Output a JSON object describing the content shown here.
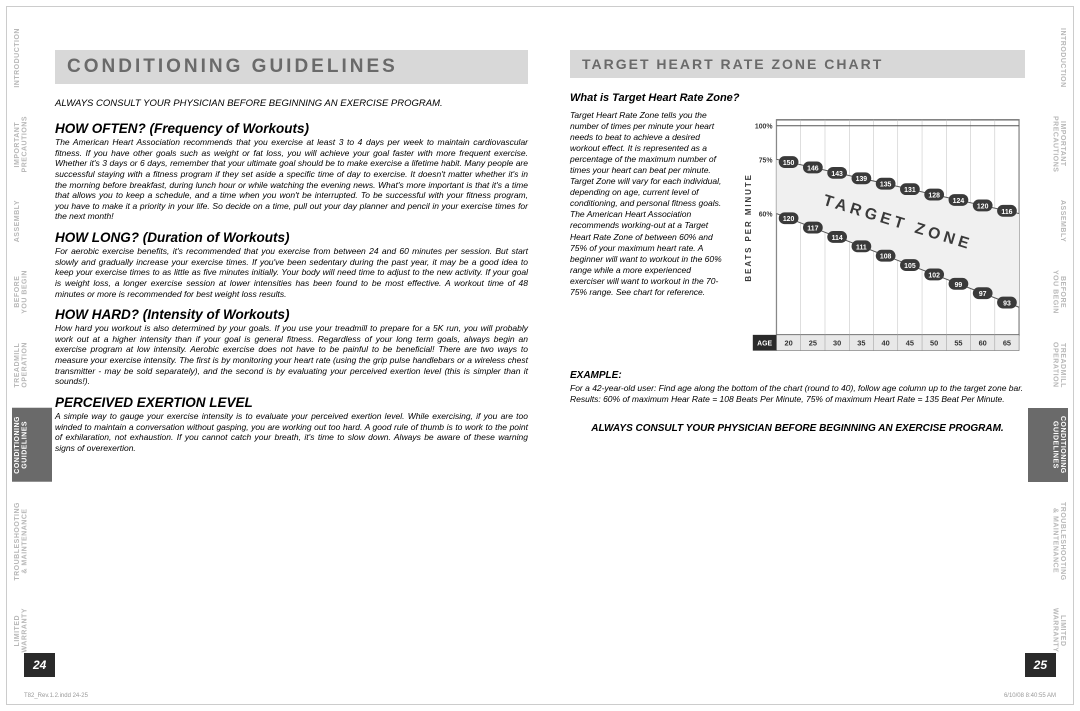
{
  "nav": {
    "left": [
      "INTRODUCTION",
      "IMPORTANT PRECAUTIONS",
      "ASSEMBLY",
      "BEFORE YOU BEGIN",
      "TREADMILL OPERATION",
      "CONDITIONING GUIDELINES",
      "TROUBLESHOOTING & MAINTENANCE",
      "LIMITED WARRANTY"
    ],
    "right": [
      "INTRODUCTION",
      "IMPORTANT PRECAUTIONS",
      "ASSEMBLY",
      "BEFORE YOU BEGIN",
      "TREADMILL OPERATION",
      "CONDITIONING GUIDELINES",
      "TROUBLESHOOTING & MAINTENANCE",
      "LIMITED WARRANTY"
    ],
    "active_index": 5
  },
  "left_page": {
    "title": "CONDITIONING GUIDELINES",
    "disclaimer": "ALWAYS CONSULT YOUR PHYSICIAN BEFORE BEGINNING AN EXERCISE PROGRAM.",
    "sections": [
      {
        "heading": "HOW OFTEN? (Frequency of Workouts)",
        "body": "The American Heart Association recommends that you exercise at least 3 to 4 days per week to maintain cardiovascular fitness. If you have other goals such as weight or fat loss, you will achieve your goal faster with more frequent exercise. Whether it's 3 days or 6 days, remember that your ultimate goal should be to make exercise a lifetime habit. Many people are successful staying with a fitness program if they set aside a specific time of day to exercise. It doesn't matter whether it's in the morning before breakfast, during lunch hour or while watching the evening news. What's more important is that it's a time that allows you to keep a schedule, and a time when you won't be interrupted. To be successful with your fitness program, you have to make it a priority in your life. So decide on a time, pull out your day planner and pencil in your exercise times for the next month!"
      },
      {
        "heading": "HOW LONG? (Duration of Workouts)",
        "body": "For aerobic exercise benefits, it's recommended that you exercise from between 24 and 60 minutes per session. But start slowly and gradually increase your exercise times. If you've been sedentary during the past year, it may be a good idea to keep your exercise times to as little as five minutes initially. Your body will need time to adjust to the new activity. If your goal is weight loss, a longer exercise session at lower intensities has been found to be most effective. A workout time of 48 minutes or more is recommended for best weight loss results."
      },
      {
        "heading": "HOW HARD? (Intensity of Workouts)",
        "body": "How hard you workout is also determined by your goals. If you use your treadmill to prepare for a 5K run, you will probably work out at a higher intensity than if your goal is general fitness. Regardless of your long term goals, always begin an exercise program at low intensity. Aerobic exercise does not have to be painful to be beneficial! There are two ways to measure your exercise intensity. The first is by monitoring your heart rate (using the grip pulse handlebars or a wireless chest transmitter - may be sold separately), and the second is by evaluating your perceived exertion level (this is simpler than it sounds!)."
      },
      {
        "heading": "PERCEIVED EXERTION LEVEL",
        "body": "A simple way to gauge your exercise intensity is to evaluate your perceived exertion level. While exercising, if you are too winded to maintain a conversation without gasping, you are working out too hard. A good rule of thumb is to work to the point of exhilaration, not exhaustion. If you cannot catch your breath, it's time to slow down. Always be aware of these warning signs of overexertion."
      }
    ],
    "page_num": "24"
  },
  "right_page": {
    "title": "TARGET HEART RATE ZONE CHART",
    "question": "What is Target Heart Rate Zone?",
    "explain": "Target Heart Rate Zone tells you the number of times per minute your heart needs to beat to achieve a desired workout effect. It is represented as a percentage of the maximum number of times your heart can beat per minute. Target Zone will vary for each individual, depending on age, current level of conditioning, and personal fitness goals. The American Heart Association recommends working-out at a Target Heart Rate Zone of between 60% and 75% of your maximum heart rate. A beginner will want to workout in the 60% range while a more experienced exerciser will want to workout in the 70-75% range. See chart for reference.",
    "example_heading": "EXAMPLE:",
    "example_text": "For a 42-year-old user: Find age along the bottom of the chart (round to 40), follow age column up to the target zone bar. Results: 60% of maximum Hear Rate = 108 Beats Per Minute, 75% of maximum Heart Rate = 135 Beat Per Minute.",
    "bottom_disclaimer": "ALWAYS CONSULT YOUR PHYSICIAN BEFORE BEGINNING AN EXERCISE PROGRAM.",
    "page_num": "25",
    "chart": {
      "type": "zone-chart",
      "y_axis_label": "BEATS PER MINUTE",
      "percent_labels": [
        "100%",
        "75%",
        "60%"
      ],
      "target_text": "TARGET ZONE",
      "age_label": "AGE",
      "ages": [
        "20",
        "25",
        "30",
        "35",
        "40",
        "45",
        "50",
        "55",
        "60",
        "65"
      ],
      "row_100": [
        "",
        "",
        "",
        "",
        "",
        "",
        "",
        "",
        "",
        ""
      ],
      "row_75": [
        "150",
        "146",
        "143",
        "139",
        "135",
        "131",
        "128",
        "124",
        "120",
        "116"
      ],
      "row_60": [
        "120",
        "117",
        "114",
        "111",
        "108",
        "105",
        "102",
        "99",
        "97",
        "93"
      ],
      "colors": {
        "bg": "#ffffff",
        "grid": "#bdbdbd",
        "zone_bg": "#f0f0f0",
        "pill_bg": "#3a3a3a",
        "pill_text": "#ffffff",
        "age_bar_bg": "#2a2a2a",
        "age_text": "#ffffff",
        "label_text": "#3a3a3a"
      }
    }
  },
  "footer": {
    "left": "T82_Rev.1.2.indd   24-25",
    "right": "6/10/08   8:40:55 AM"
  }
}
